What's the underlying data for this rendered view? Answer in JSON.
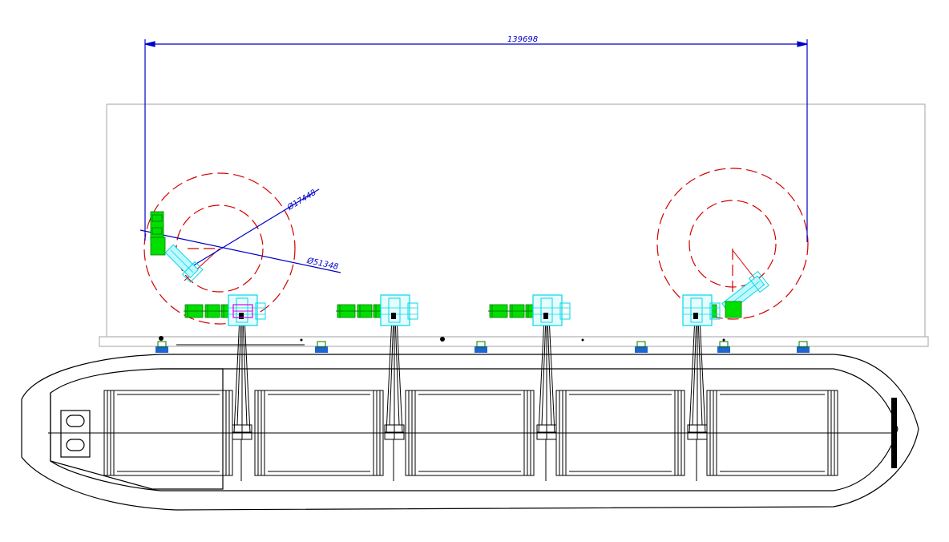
{
  "drawing": {
    "overall_dimension": "139698",
    "diameter_outer_label": "Ø17448",
    "diameter_inner_label": "Ø51348"
  },
  "colors": {
    "background": "#ffffff",
    "pier_outline": "#b4b4b4",
    "hull_outline": "#000000",
    "dimension_line": "#0000c8",
    "slew_circle": "#d20000",
    "arm_green": "#00e000",
    "arm_dark_green": "#007a00",
    "loader_cyan": "#00d8e8",
    "accent_magenta": "#e000e0",
    "bollard_blue": "#1e64d2"
  },
  "icons": {
    "bollard": "mooring-bollard-icon",
    "loading_arm": "loading-arm-icon",
    "tank": "cargo-tank-icon"
  }
}
